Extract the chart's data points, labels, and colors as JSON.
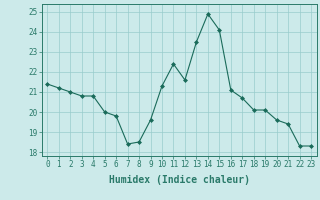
{
  "x": [
    0,
    1,
    2,
    3,
    4,
    5,
    6,
    7,
    8,
    9,
    10,
    11,
    12,
    13,
    14,
    15,
    16,
    17,
    18,
    19,
    20,
    21,
    22,
    23
  ],
  "y": [
    21.4,
    21.2,
    21.0,
    20.8,
    20.8,
    20.0,
    19.8,
    18.4,
    18.5,
    19.6,
    21.3,
    22.4,
    21.6,
    23.5,
    24.9,
    24.1,
    21.1,
    20.7,
    20.1,
    20.1,
    19.6,
    19.4,
    18.3,
    18.3
  ],
  "line_color": "#1a6b5a",
  "marker_color": "#1a6b5a",
  "bg_color": "#cceaea",
  "grid_color": "#99cccc",
  "xlabel": "Humidex (Indice chaleur)",
  "ylim": [
    17.8,
    25.4
  ],
  "xlim": [
    -0.5,
    23.5
  ],
  "yticks": [
    18,
    19,
    20,
    21,
    22,
    23,
    24,
    25
  ],
  "xticks": [
    0,
    1,
    2,
    3,
    4,
    5,
    6,
    7,
    8,
    9,
    10,
    11,
    12,
    13,
    14,
    15,
    16,
    17,
    18,
    19,
    20,
    21,
    22,
    23
  ],
  "tick_fontsize": 5.5,
  "label_fontsize": 7.0,
  "spine_color": "#2a7a6a"
}
